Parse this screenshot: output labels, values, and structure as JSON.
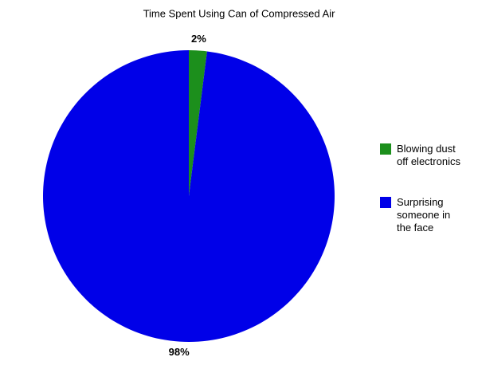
{
  "chart_data": {
    "type": "pie",
    "title": "Time Spent Using Can of Compressed Air",
    "categories": [
      "Blowing dust off electronics",
      "Surprising someone in the face"
    ],
    "values": [
      2,
      98
    ],
    "value_labels": [
      "2%",
      "98%"
    ],
    "colors": [
      "#1c8f1c",
      "#0000e8"
    ],
    "legend": "right"
  }
}
